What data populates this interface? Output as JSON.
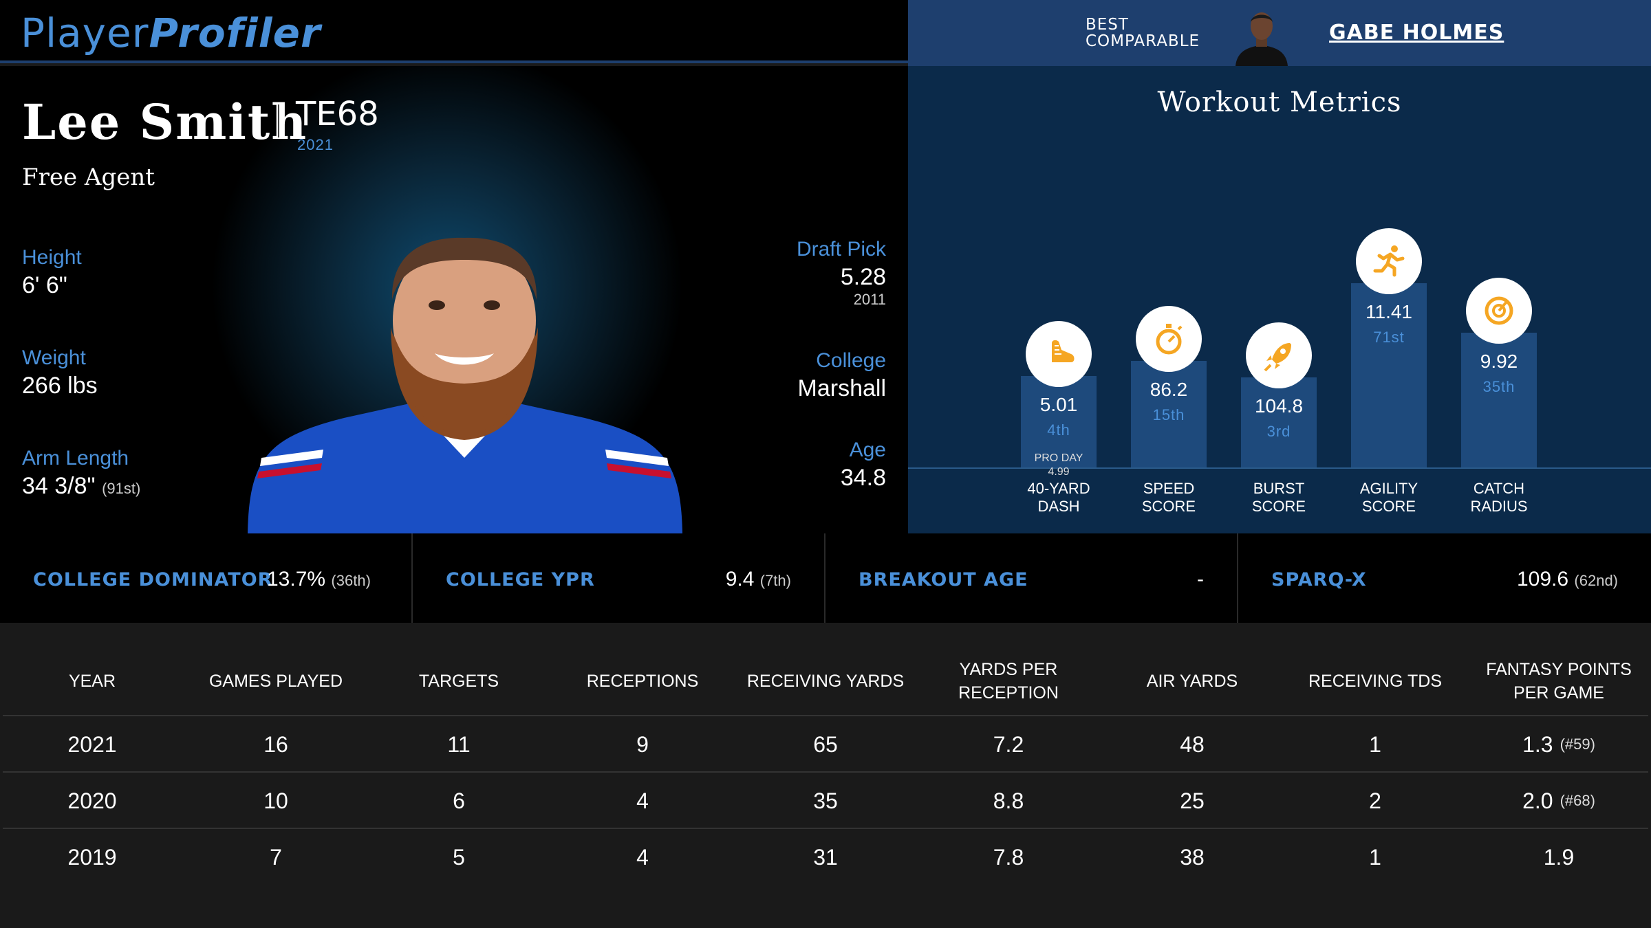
{
  "brand": {
    "part1": "Player",
    "part2": "Profiler"
  },
  "comparable": {
    "label_line1": "BEST",
    "label_line2": "COMPARABLE",
    "name": "GABE HOLMES"
  },
  "player": {
    "name": "Lee Smith",
    "position": "TE68",
    "year": "2021",
    "team": "Free Agent",
    "height": {
      "label": "Height",
      "value": "6' 6\""
    },
    "weight": {
      "label": "Weight",
      "value": "266 lbs"
    },
    "arm": {
      "label": "Arm Length",
      "value": "34 3/8\"",
      "rank": "(91st)"
    },
    "draft": {
      "label": "Draft Pick",
      "value": "5.28",
      "year": "2011"
    },
    "college": {
      "label": "College",
      "value": "Marshall"
    },
    "age": {
      "label": "Age",
      "value": "34.8"
    }
  },
  "workout": {
    "title": "Workout Metrics",
    "metrics": [
      {
        "label1": "40-YARD",
        "label2": "DASH",
        "value": "5.01",
        "rank": "4th",
        "extra1": "PRO DAY",
        "extra2": "4.99",
        "percentile": 4,
        "icon": "shoe-icon"
      },
      {
        "label1": "SPEED",
        "label2": "SCORE",
        "value": "86.2",
        "rank": "15th",
        "percentile": 15,
        "icon": "stopwatch-icon"
      },
      {
        "label1": "BURST",
        "label2": "SCORE",
        "value": "104.8",
        "rank": "3rd",
        "percentile": 3,
        "icon": "rocket-icon"
      },
      {
        "label1": "AGILITY",
        "label2": "SCORE",
        "value": "11.41",
        "rank": "71st",
        "percentile": 71,
        "icon": "runner-icon"
      },
      {
        "label1": "CATCH",
        "label2": "RADIUS",
        "value": "9.92",
        "rank": "35th",
        "percentile": 35,
        "icon": "target-icon"
      }
    ]
  },
  "mid_metrics": [
    {
      "label": "COLLEGE DOMINATOR",
      "value": "13.7%",
      "rank": "(36th)"
    },
    {
      "label": "COLLEGE YPR",
      "value": "9.4",
      "rank": "(7th)"
    },
    {
      "label": "BREAKOUT AGE",
      "value": "-",
      "rank": ""
    },
    {
      "label": "SPARQ-X",
      "value": "109.6",
      "rank": "(62nd)"
    }
  ],
  "table": {
    "headers": [
      "YEAR",
      "GAMES PLAYED",
      "TARGETS",
      "RECEPTIONS",
      "RECEIVING YARDS",
      "YARDS PER RECEPTION",
      "AIR YARDS",
      "RECEIVING TDS",
      "FANTASY POINTS PER GAME"
    ],
    "rows": [
      {
        "cells": [
          "2021",
          "16",
          "11",
          "9",
          "65",
          "7.2",
          "48",
          "1",
          "1.3"
        ],
        "rank": "(#59)"
      },
      {
        "cells": [
          "2020",
          "10",
          "6",
          "4",
          "35",
          "8.8",
          "25",
          "2",
          "2.0"
        ],
        "rank": "(#68)"
      },
      {
        "cells": [
          "2019",
          "7",
          "5",
          "4",
          "31",
          "7.8",
          "38",
          "1",
          "1.9"
        ],
        "rank": ""
      }
    ]
  },
  "colors": {
    "accent": "#4a90d9",
    "navy": "#1e3f6e",
    "bar": "#1e4a7c",
    "icon": "#f5a623"
  }
}
